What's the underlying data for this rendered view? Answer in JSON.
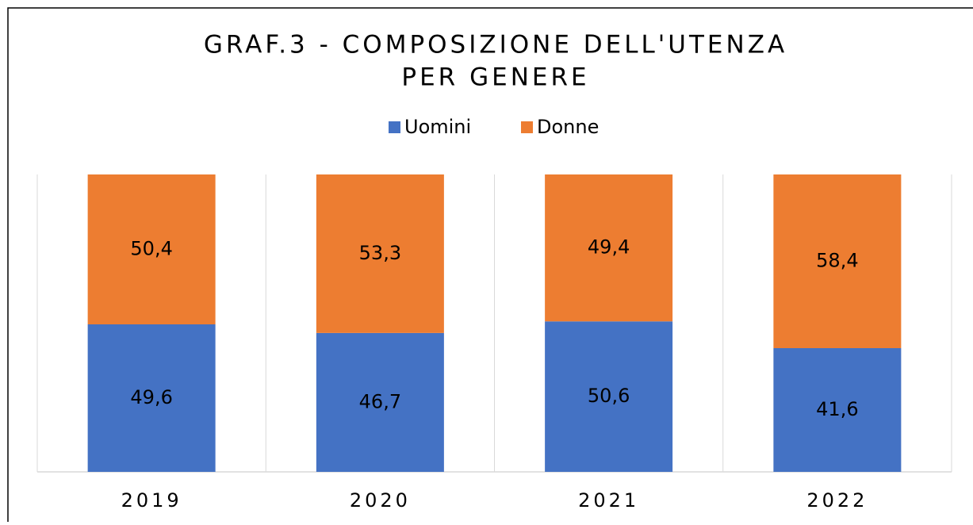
{
  "chart_data": {
    "type": "bar",
    "stacked": true,
    "title": [
      "GRAF.3 - COMPOSIZIONE DELL'UTENZA",
      "PER GENERE"
    ],
    "categories": [
      "2019",
      "2020",
      "2021",
      "2022"
    ],
    "ylim": [
      0,
      100
    ],
    "legend": "top",
    "series": [
      {
        "name": "Uomini",
        "color": "#4472c4",
        "values": [
          49.6,
          46.7,
          50.6,
          41.6
        ],
        "value_labels": [
          "49,6",
          "46,7",
          "50,6",
          "41,6"
        ]
      },
      {
        "name": "Donne",
        "color": "#ed7d31",
        "values": [
          50.4,
          53.3,
          49.4,
          58.4
        ],
        "value_labels": [
          "50,4",
          "53,3",
          "49,4",
          "58,4"
        ]
      }
    ]
  }
}
